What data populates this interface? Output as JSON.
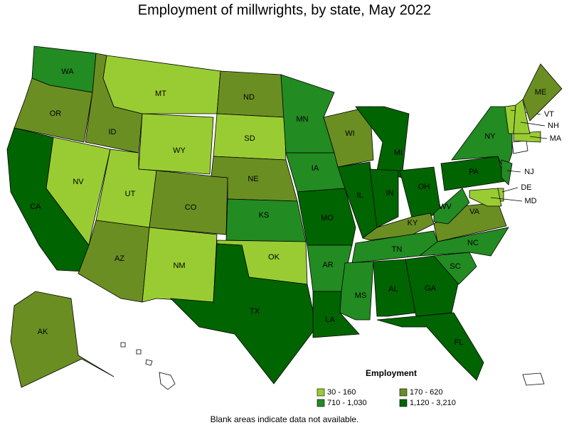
{
  "title": "Employment of millwrights, by state, May 2022",
  "legend": {
    "title": "Employment",
    "items": [
      {
        "label": "30 - 160",
        "color": "#99cc33"
      },
      {
        "label": "170 - 620",
        "color": "#6b8e23"
      },
      {
        "label": "710 - 1,030",
        "color": "#228b22"
      },
      {
        "label": "1,120 - 3,210",
        "color": "#006400"
      }
    ]
  },
  "states": [
    {
      "label": "WA",
      "class": 2
    },
    {
      "label": "OR",
      "class": 1
    },
    {
      "label": "CA",
      "class": 3
    },
    {
      "label": "NV",
      "class": 0
    },
    {
      "label": "ID",
      "class": 1
    },
    {
      "label": "MT",
      "class": 0
    },
    {
      "label": "WY",
      "class": 0
    },
    {
      "label": "UT",
      "class": 0
    },
    {
      "label": "AZ",
      "class": 1
    },
    {
      "label": "CO",
      "class": 1
    },
    {
      "label": "NM",
      "class": 0
    },
    {
      "label": "ND",
      "class": 1
    },
    {
      "label": "SD",
      "class": 0
    },
    {
      "label": "NE",
      "class": 1
    },
    {
      "label": "KS",
      "class": 2
    },
    {
      "label": "OK",
      "class": 0
    },
    {
      "label": "TX",
      "class": 3
    },
    {
      "label": "MN",
      "class": 2
    },
    {
      "label": "IA",
      "class": 2
    },
    {
      "label": "MO",
      "class": 3
    },
    {
      "label": "AR",
      "class": 2
    },
    {
      "label": "LA",
      "class": 3
    },
    {
      "label": "WI",
      "class": 1
    },
    {
      "label": "IL",
      "class": 3
    },
    {
      "label": "MI",
      "class": 3
    },
    {
      "label": "IN",
      "class": 3
    },
    {
      "label": "OH",
      "class": 3
    },
    {
      "label": "KY",
      "class": 1
    },
    {
      "label": "TN",
      "class": 2
    },
    {
      "label": "MS",
      "class": 2
    },
    {
      "label": "AL",
      "class": 3
    },
    {
      "label": "GA",
      "class": 3
    },
    {
      "label": "FL",
      "class": 3
    },
    {
      "label": "SC",
      "class": 2
    },
    {
      "label": "NC",
      "class": 2
    },
    {
      "label": "VA",
      "class": 1
    },
    {
      "label": "WV",
      "class": 2
    },
    {
      "label": "PA",
      "class": 3
    },
    {
      "label": "NY",
      "class": 2
    },
    {
      "label": "NJ",
      "class": 2
    },
    {
      "label": "DE",
      "class": 0
    },
    {
      "label": "MD",
      "class": 0
    },
    {
      "label": "MA",
      "class": 0
    },
    {
      "label": "VT",
      "class": 0
    },
    {
      "label": "NH",
      "class": 0
    },
    {
      "label": "ME",
      "class": 1
    },
    {
      "label": "AK",
      "class": 1
    }
  ],
  "note": "Blank areas indicate data not available."
}
